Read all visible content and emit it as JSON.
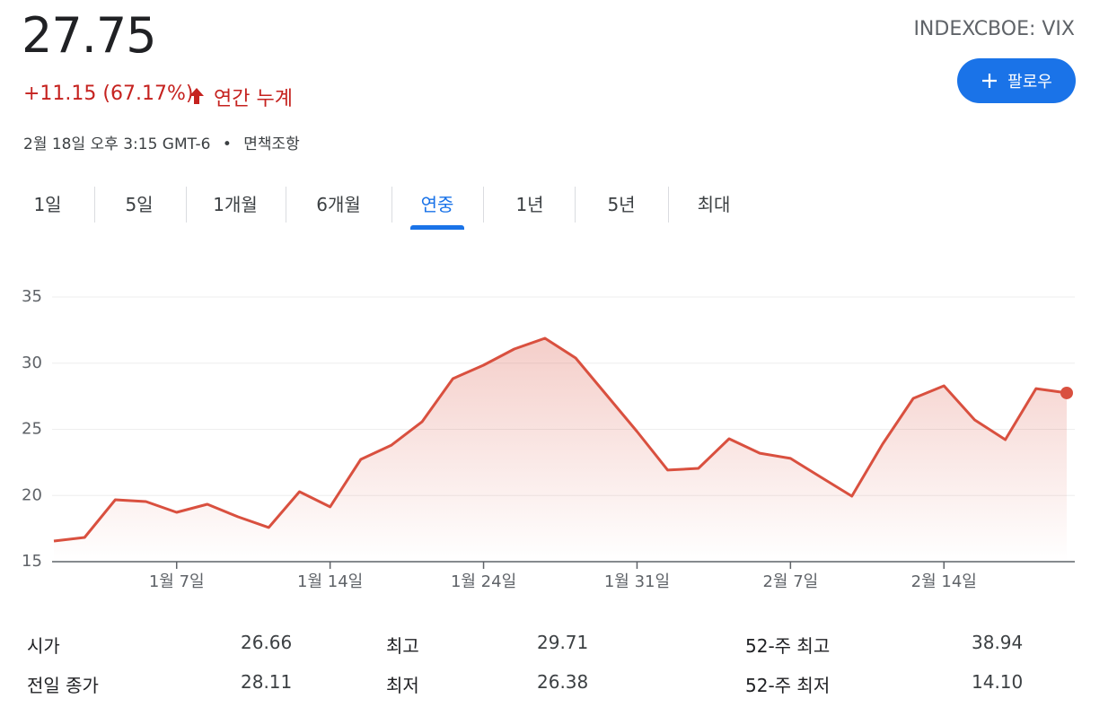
{
  "header": {
    "price": "27.75",
    "change": "+11.15 (67.17%)",
    "period": "연간 누계",
    "timestamp": "2월 18일 오후 3:15 GMT-6",
    "separator": "•",
    "disclaimer": "면책조항",
    "ticker": "INDEXCBOE: VIX",
    "follow": "팔로우"
  },
  "tabs": {
    "items": [
      "1일",
      "5일",
      "1개월",
      "6개월",
      "연중",
      "1년",
      "5년",
      "최대"
    ],
    "active": 4
  },
  "chart_data": {
    "type": "line",
    "color": "#d9503f",
    "ylim": [
      15,
      35
    ],
    "yticks": [
      15,
      20,
      25,
      30,
      35
    ],
    "grid": true,
    "categories": [
      null,
      null,
      null,
      null,
      "1월 7일",
      null,
      null,
      null,
      null,
      "1월 14일",
      null,
      null,
      null,
      null,
      "1월 24일",
      null,
      null,
      null,
      null,
      "1월 31일",
      null,
      null,
      null,
      null,
      "2월 7일",
      null,
      null,
      null,
      null,
      "2월 14일",
      null,
      null,
      null,
      null
    ],
    "values": [
      16.56,
      16.83,
      19.68,
      19.54,
      18.73,
      19.34,
      18.39,
      17.58,
      20.29,
      19.14,
      22.73,
      23.81,
      25.58,
      28.83,
      29.85,
      31.07,
      31.88,
      30.39,
      27.61,
      24.83,
      21.92,
      22.05,
      24.29,
      23.2,
      22.8,
      21.37,
      19.95,
      23.88,
      27.34,
      28.29,
      25.71,
      24.22,
      28.08,
      27.75
    ]
  },
  "stats": {
    "rows": [
      [
        "시가",
        "26.66",
        "최고",
        "29.71",
        "52-주 최고",
        "38.94"
      ],
      [
        "전일 종가",
        "28.11",
        "최저",
        "26.38",
        "52-주 최저",
        "14.10"
      ]
    ]
  }
}
